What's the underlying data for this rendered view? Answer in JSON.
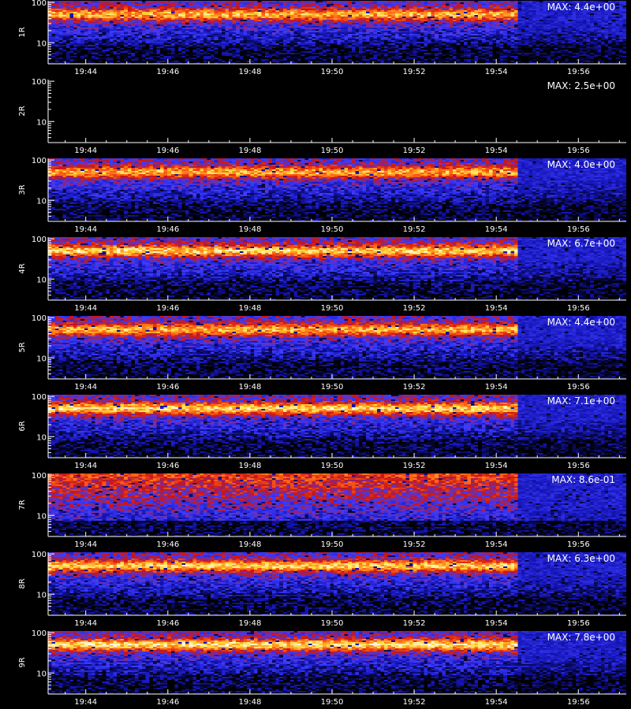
{
  "chart_data": {
    "type": "heatmap",
    "xlim": [
      "19:43:05",
      "19:57:10"
    ],
    "x_ticks": [
      "19:44",
      "19:46",
      "19:48",
      "19:50",
      "19:52",
      "19:54",
      "19:56"
    ],
    "y_scale": "log",
    "ylim": [
      3,
      110
    ],
    "y_ticks": [
      "100",
      "10"
    ],
    "colormap": [
      "#000000",
      "#1414b4",
      "#3c3cff",
      "#cc1414",
      "#ff6414",
      "#ffdc3c",
      "#ffffff"
    ],
    "panels": [
      {
        "label": "1R",
        "max_label": "MAX: 4.4e+00",
        "max_value": 4.4,
        "active": true
      },
      {
        "label": "2R",
        "max_label": "MAX: 2.5e+00",
        "max_value": 2.5,
        "active": false
      },
      {
        "label": "3R",
        "max_label": "MAX: 4.0e+00",
        "max_value": 4.0,
        "active": true
      },
      {
        "label": "4R",
        "max_label": "MAX: 6.7e+00",
        "max_value": 6.7,
        "active": true
      },
      {
        "label": "5R",
        "max_label": "MAX: 4.4e+00",
        "max_value": 4.4,
        "active": true
      },
      {
        "label": "6R",
        "max_label": "MAX: 7.1e+00",
        "max_value": 7.1,
        "active": true
      },
      {
        "label": "7R",
        "max_label": "MAX: 8.6e-01",
        "max_value": 0.86,
        "active": true
      },
      {
        "label": "8R",
        "max_label": "MAX: 6.3e+00",
        "max_value": 6.3,
        "active": true
      },
      {
        "label": "9R",
        "max_label": "MAX: 7.8e+00",
        "max_value": 7.8,
        "active": true
      }
    ]
  }
}
